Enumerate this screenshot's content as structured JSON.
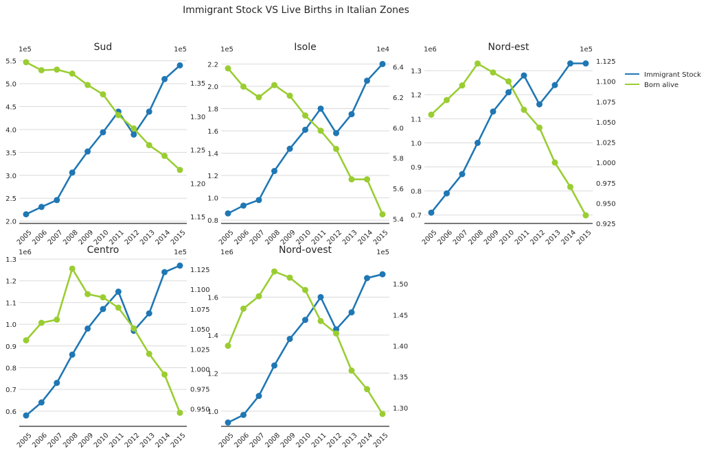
{
  "title": "Immigrant Stock VS Live Births in Italian Zones",
  "legend": {
    "placement": "right",
    "items": [
      {
        "label": "Immigrant Stock",
        "color": "#1f77b4"
      },
      {
        "label": "Born alive",
        "color": "#9acd32"
      }
    ]
  },
  "chart_data": [
    {
      "type": "line",
      "title": "Sud",
      "x": [
        2005,
        2006,
        2007,
        2008,
        2009,
        2010,
        2011,
        2012,
        2013,
        2014,
        2015
      ],
      "left_axis": {
        "multiplier": "1e5",
        "ylim": [
          1.95,
          5.6
        ],
        "ticks": [
          2.0,
          2.5,
          3.0,
          3.5,
          4.0,
          4.5,
          5.0,
          5.5
        ],
        "tick_labels": [
          "2.0",
          "2.5",
          "3.0",
          "3.5",
          "4.0",
          "4.5",
          "5.0",
          "5.5"
        ]
      },
      "right_axis": {
        "multiplier": "1e5",
        "ylim": [
          1.14,
          1.39
        ],
        "ticks": [
          1.15,
          1.2,
          1.25,
          1.3,
          1.35
        ],
        "tick_labels": [
          "1.15",
          "1.20",
          "1.25",
          "1.30",
          "1.35"
        ]
      },
      "series": [
        {
          "name": "Immigrant Stock",
          "axis": "left",
          "values": [
            2.15,
            2.31,
            2.46,
            3.06,
            3.52,
            3.94,
            4.39,
            3.89,
            4.39,
            5.1,
            5.4
          ]
        },
        {
          "name": "Born alive",
          "axis": "right",
          "values": [
            1.381,
            1.369,
            1.37,
            1.364,
            1.347,
            1.333,
            1.302,
            1.282,
            1.257,
            1.241,
            1.22
          ]
        }
      ]
    },
    {
      "type": "line",
      "title": "Isole",
      "x": [
        2005,
        2006,
        2007,
        2008,
        2009,
        2010,
        2011,
        2012,
        2013,
        2014,
        2015
      ],
      "left_axis": {
        "multiplier": "1e5",
        "ylim": [
          0.77,
          2.27
        ],
        "ticks": [
          0.8,
          1.0,
          1.2,
          1.4,
          1.6,
          1.8,
          2.0,
          2.2
        ],
        "tick_labels": [
          "0.8",
          "1.0",
          "1.2",
          "1.4",
          "1.6",
          "1.8",
          "2.0",
          "2.2"
        ]
      },
      "right_axis": {
        "multiplier": "1e4",
        "ylim": [
          5.37,
          6.47
        ],
        "ticks": [
          5.4,
          5.6,
          5.8,
          6.0,
          6.2,
          6.4
        ],
        "tick_labels": [
          "5.4",
          "5.6",
          "5.8",
          "6.0",
          "6.2",
          "6.4"
        ]
      },
      "series": [
        {
          "name": "Immigrant Stock",
          "axis": "left",
          "values": [
            0.86,
            0.93,
            0.98,
            1.24,
            1.44,
            1.61,
            1.8,
            1.58,
            1.75,
            2.05,
            2.2
          ]
        },
        {
          "name": "Born alive",
          "axis": "right",
          "values": [
            6.39,
            6.27,
            6.2,
            6.28,
            6.21,
            6.08,
            5.98,
            5.86,
            5.66,
            5.66,
            5.43
          ]
        }
      ]
    },
    {
      "type": "line",
      "title": "Nord-est",
      "x": [
        2005,
        2006,
        2007,
        2008,
        2009,
        2010,
        2011,
        2012,
        2013,
        2014,
        2015
      ],
      "left_axis": {
        "multiplier": "1e6",
        "ylim": [
          0.665,
          1.36
        ],
        "ticks": [
          0.7,
          0.8,
          0.9,
          1.0,
          1.1,
          1.2,
          1.3
        ],
        "tick_labels": [
          "0.7",
          "0.8",
          "0.9",
          "1.0",
          "1.1",
          "1.2",
          "1.3"
        ]
      },
      "right_axis": {
        "multiplier": "1e5",
        "ylim": [
          0.925,
          1.131
        ],
        "ticks": [
          0.925,
          0.95,
          0.975,
          1.0,
          1.025,
          1.05,
          1.075,
          1.1,
          1.125
        ],
        "tick_labels": [
          "0.925",
          "0.950",
          "0.975",
          "1.000",
          "1.025",
          "1.050",
          "1.075",
          "1.100",
          "1.125"
        ]
      },
      "series": [
        {
          "name": "Immigrant Stock",
          "axis": "left",
          "values": [
            0.71,
            0.79,
            0.87,
            1.0,
            1.13,
            1.21,
            1.28,
            1.16,
            1.24,
            1.33,
            1.33
          ]
        },
        {
          "name": "Born alive",
          "axis": "right",
          "values": [
            1.059,
            1.077,
            1.095,
            1.122,
            1.111,
            1.1,
            1.065,
            1.043,
            1.0,
            0.97,
            0.935
          ]
        }
      ]
    },
    {
      "type": "line",
      "title": "Centro",
      "x": [
        2005,
        2006,
        2007,
        2008,
        2009,
        2010,
        2011,
        2012,
        2013,
        2014,
        2015
      ],
      "left_axis": {
        "multiplier": "1e6",
        "ylim": [
          0.53,
          1.3
        ],
        "ticks": [
          0.6,
          0.7,
          0.8,
          0.9,
          1.0,
          1.1,
          1.2,
          1.3
        ],
        "tick_labels": [
          "0.6",
          "0.7",
          "0.8",
          "0.9",
          "1.0",
          "1.1",
          "1.2",
          "1.3"
        ]
      },
      "right_axis": {
        "multiplier": "1e5",
        "ylim": [
          0.928,
          1.138
        ],
        "ticks": [
          0.95,
          0.975,
          1.0,
          1.025,
          1.05,
          1.075,
          1.1,
          1.125
        ],
        "tick_labels": [
          "0.950",
          "0.975",
          "1.000",
          "1.025",
          "1.050",
          "1.075",
          "1.100",
          "1.125"
        ]
      },
      "series": [
        {
          "name": "Immigrant Stock",
          "axis": "left",
          "values": [
            0.58,
            0.64,
            0.73,
            0.86,
            0.98,
            1.07,
            1.15,
            0.97,
            1.05,
            1.24,
            1.27
          ]
        },
        {
          "name": "Born alive",
          "axis": "right",
          "values": [
            1.036,
            1.058,
            1.062,
            1.126,
            1.094,
            1.09,
            1.077,
            1.051,
            1.019,
            0.993,
            0.945
          ]
        }
      ]
    },
    {
      "type": "line",
      "title": "Nord-ovest",
      "x": [
        2005,
        2006,
        2007,
        2008,
        2009,
        2010,
        2011,
        2012,
        2013,
        2014,
        2015
      ],
      "left_axis": {
        "multiplier": "1e6",
        "ylim": [
          0.92,
          1.8
        ],
        "ticks": [
          1.0,
          1.2,
          1.4,
          1.6
        ],
        "tick_labels": [
          "1.0",
          "1.2",
          "1.4",
          "1.6"
        ]
      },
      "right_axis": {
        "multiplier": "1e5",
        "ylim": [
          1.27,
          1.54
        ],
        "ticks": [
          1.3,
          1.35,
          1.4,
          1.45,
          1.5
        ],
        "tick_labels": [
          "1.30",
          "1.35",
          "1.40",
          "1.45",
          "1.50"
        ]
      },
      "series": [
        {
          "name": "Immigrant Stock",
          "axis": "left",
          "values": [
            0.94,
            0.98,
            1.08,
            1.24,
            1.38,
            1.48,
            1.6,
            1.43,
            1.52,
            1.7,
            1.72
          ]
        },
        {
          "name": "Born alive",
          "axis": "right",
          "values": [
            1.4,
            1.46,
            1.48,
            1.52,
            1.51,
            1.49,
            1.44,
            1.42,
            1.36,
            1.33,
            1.29
          ]
        }
      ]
    }
  ]
}
